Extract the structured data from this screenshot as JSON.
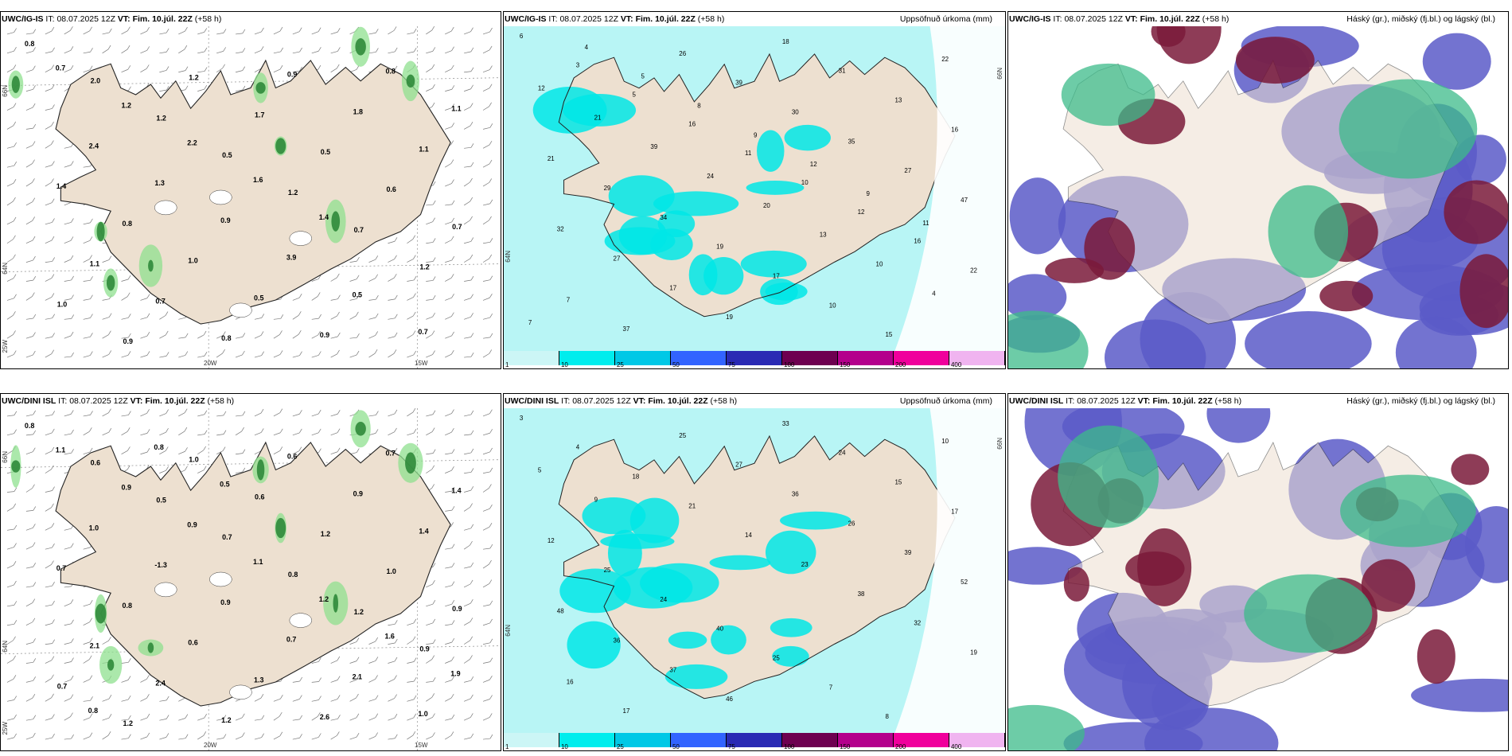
{
  "top_row": {
    "precip_panel": {
      "model": "UWC/IG-IS",
      "it_label": "IT:",
      "it_value": "08.07.2025 12Z",
      "vt_label": "VT:",
      "vt_value": "Fim. 10.júl. 22Z",
      "lead": "(+58 h)",
      "lon_labels": [
        "20W",
        "15W"
      ],
      "lat_labels": [
        "66N",
        "64N",
        "25W"
      ],
      "values": [
        "0.8",
        "2.0",
        "1.2",
        "0.5",
        "1.2",
        "0.7",
        "1.2",
        "1.0",
        "0.9",
        "1.2",
        "1.7",
        "0.5",
        "0.6",
        "0.7",
        "1.1",
        "0.7",
        "0.8",
        "0.9",
        "1.8",
        "1.1",
        "1.4",
        "0.8",
        "1.0",
        "0.5",
        "0.9",
        "0.8",
        "1.1",
        "2.4",
        "1.3",
        "0.9",
        "3.9",
        "0.5",
        "0.7",
        "0.7",
        "1.2",
        "2.2",
        "1.6",
        "1.4"
      ]
    },
    "accum_panel": {
      "model": "UWC/IG-IS",
      "it_label": "IT:",
      "it_value": "08.07.2025 12Z",
      "vt_label": "VT:",
      "vt_value": "Fim. 10.júl. 22Z",
      "lead": "(+58 h)",
      "title_right": "Uppsöfnuð úrkoma (mm)",
      "lat_labels": [
        "66N",
        "64N"
      ],
      "values": [
        "6",
        "3",
        "5",
        "16",
        "11",
        "10",
        "12",
        "16",
        "22",
        "7",
        "37",
        "26",
        "39",
        "30",
        "35",
        "27",
        "47",
        "32",
        "27",
        "17",
        "19",
        "18",
        "31",
        "13",
        "16",
        "21",
        "29",
        "34",
        "19",
        "17",
        "10",
        "15",
        "22",
        "12",
        "21",
        "39",
        "24",
        "20",
        "13",
        "10",
        "4",
        "7",
        "4",
        "5",
        "8",
        "9",
        "12",
        "9",
        "11"
      ]
    },
    "cloud_panel": {
      "model": "UWC/IG-IS",
      "it_label": "IT:",
      "it_value": "08.07.2025 12Z",
      "vt_label": "VT:",
      "vt_value": "Fim. 10.júl. 22Z",
      "lead": "(+58 h)",
      "title_right": "Háský (gr.), miðský (fj.bl.) og lágský (bl.)"
    }
  },
  "bottom_row": {
    "precip_panel": {
      "model": "UWC/DINI ISL",
      "it_label": "IT:",
      "it_value": "08.07.2025 12Z",
      "vt_label": "VT:",
      "vt_value": "Fim. 10.júl. 22Z",
      "lead": "(+58 h)",
      "lon_labels": [
        "20W",
        "15W"
      ],
      "lat_labels": [
        "66N",
        "64N",
        "25W"
      ],
      "values": [
        "0.8",
        "0.6",
        "0.5",
        "0.7",
        "0.8",
        "1.2",
        "0.9",
        "0.7",
        "1.2",
        "1.0",
        "0.6",
        "1.2",
        "1.0",
        "0.9",
        "2.1",
        "2.4",
        "1.2",
        "0.6",
        "0.9",
        "1.4",
        "0.7",
        "0.8",
        "0.6",
        "1.3",
        "2.6",
        "0.7",
        "1.4",
        "1.0",
        "-1.3",
        "0.9",
        "0.7",
        "2.1",
        "1.0",
        "1.1",
        "0.9",
        "0.9",
        "1.1",
        "1.2",
        "1.6",
        "1.9",
        "0.8",
        "0.8",
        "0.5"
      ]
    },
    "accum_panel": {
      "model": "UWC/DINI ISL",
      "it_label": "IT:",
      "it_value": "08.07.2025 12Z",
      "vt_label": "VT:",
      "vt_value": "Fim. 10.júl. 22Z",
      "lead": "(+58 h)",
      "title_right": "Uppsöfnuð úrkoma (mm)",
      "lat_labels": [
        "66N",
        "64N"
      ],
      "values": [
        "3",
        "4",
        "18",
        "21",
        "14",
        "23",
        "38",
        "32",
        "19",
        "16",
        "17",
        "25",
        "27",
        "36",
        "26",
        "39",
        "52",
        "48",
        "36",
        "37",
        "46",
        "33",
        "24",
        "15",
        "17",
        "12",
        "25",
        "24",
        "40",
        "25",
        "7",
        "8",
        "10",
        "5",
        "9"
      ]
    },
    "cloud_panel": {
      "model": "UWC/DINI ISL",
      "it_label": "IT:",
      "it_value": "08.07.2025 12Z",
      "vt_label": "VT:",
      "vt_value": "Fim. 10.júl. 22Z",
      "lead": "(+58 h)",
      "title_right": "Háský (gr.), miðský (fj.bl.) og lágský (bl.)"
    }
  },
  "colorbar": {
    "labels": [
      "1",
      "10",
      "25",
      "50",
      "75",
      "100",
      "150",
      "200",
      "400"
    ],
    "colors": [
      "#ccf6f6",
      "#00eded",
      "#00c8e6",
      "#3264ff",
      "#2a2ab4",
      "#6e0050",
      "#b4008c",
      "#f0009c",
      "#f0b4f0"
    ]
  },
  "palette": {
    "land": "#ede0d0",
    "sea_precip": "#b8f5f5",
    "high_cloud": "#7a1a3a",
    "mid_cloud": "#5a5ac8",
    "low_cloud": "#3cbb8a"
  }
}
